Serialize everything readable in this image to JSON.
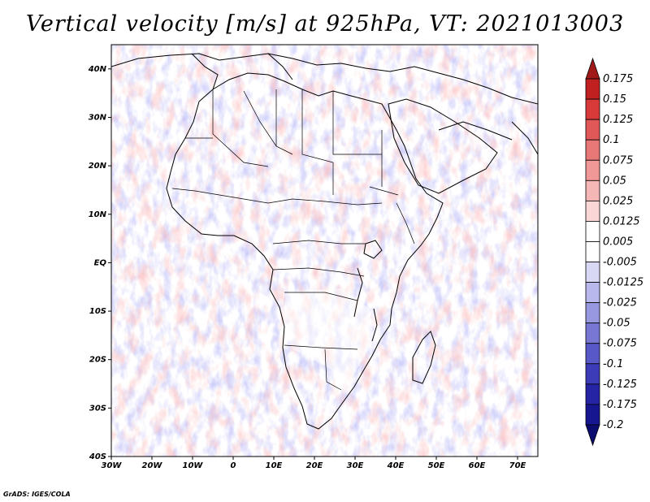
{
  "title": "Vertical velocity [m/s] at 925hPa, VT: 2021013003",
  "credit": "GrADS: IGES/COLA",
  "map": {
    "lon_range": [
      -30,
      75
    ],
    "lat_range": [
      -40,
      45
    ],
    "lon_ticks": [
      "30W",
      "20W",
      "10W",
      "0",
      "10E",
      "20E",
      "30E",
      "40E",
      "50E",
      "60E",
      "70E"
    ],
    "lat_ticks": [
      "40S",
      "30S",
      "20S",
      "10S",
      "EQ",
      "10N",
      "20N",
      "30N",
      "40N"
    ]
  },
  "colorbar": {
    "labels": [
      "0.175",
      "0.15",
      "0.125",
      "0.1",
      "0.075",
      "0.05",
      "0.025",
      "0.0125",
      "0.005",
      "-0.005",
      "-0.0125",
      "-0.025",
      "-0.05",
      "-0.075",
      "-0.1",
      "-0.125",
      "-0.175",
      "-0.2"
    ],
    "colors": [
      "#a01a1a",
      "#c02020",
      "#d83a3a",
      "#e05858",
      "#e87878",
      "#f09898",
      "#f5b6b6",
      "#fad6d6",
      "#ffffff",
      "#ffffff",
      "#d8d8f4",
      "#b8b8ec",
      "#9898e0",
      "#7878d4",
      "#5858c8",
      "#3c3cb8",
      "#2424a4",
      "#161690",
      "#0c0c70"
    ]
  }
}
